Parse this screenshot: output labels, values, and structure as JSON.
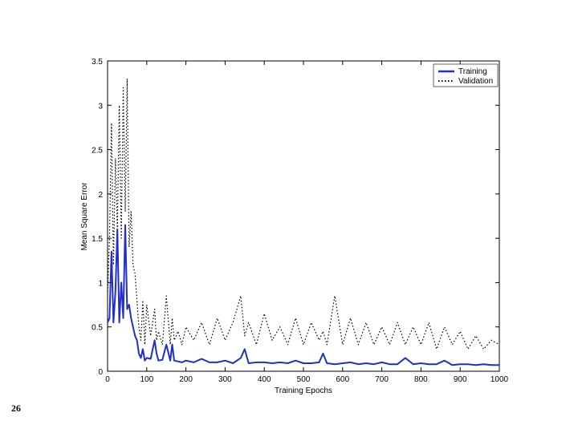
{
  "slide": {
    "number": "26"
  },
  "chart_data": {
    "type": "line",
    "title": "",
    "xlabel": "Training Epochs",
    "ylabel": "Mean Square Error",
    "xlim": [
      0,
      1000
    ],
    "ylim": [
      0,
      3.5
    ],
    "xticks": [
      "0",
      "100",
      "200",
      "300",
      "400",
      "500",
      "600",
      "700",
      "800",
      "900",
      "1000"
    ],
    "yticks": [
      "0",
      "0.5",
      "1",
      "1.5",
      "2",
      "2.5",
      "3",
      "3.5"
    ],
    "legend": {
      "placement": "top-right",
      "entries": [
        "Training",
        "Validation"
      ]
    },
    "grid": false,
    "series": [
      {
        "name": "Training",
        "color": "#1f2ed0",
        "style": "solid",
        "x": [
          0,
          5,
          10,
          15,
          20,
          25,
          30,
          35,
          40,
          45,
          50,
          55,
          60,
          65,
          70,
          75,
          80,
          85,
          90,
          95,
          100,
          110,
          120,
          125,
          130,
          140,
          150,
          160,
          165,
          170,
          180,
          190,
          200,
          220,
          240,
          260,
          280,
          300,
          320,
          340,
          350,
          360,
          380,
          400,
          420,
          440,
          460,
          480,
          500,
          520,
          540,
          550,
          560,
          580,
          600,
          620,
          640,
          660,
          680,
          700,
          720,
          740,
          760,
          780,
          800,
          820,
          840,
          860,
          880,
          900,
          920,
          940,
          960,
          980,
          1000
        ],
        "y": [
          0.55,
          0.6,
          1.35,
          0.55,
          0.9,
          1.6,
          0.55,
          1.0,
          0.6,
          1.65,
          0.7,
          0.75,
          0.6,
          0.5,
          0.4,
          0.35,
          0.2,
          0.15,
          0.25,
          0.12,
          0.15,
          0.14,
          0.35,
          0.2,
          0.12,
          0.13,
          0.3,
          0.12,
          0.3,
          0.12,
          0.11,
          0.1,
          0.12,
          0.1,
          0.14,
          0.1,
          0.1,
          0.12,
          0.09,
          0.15,
          0.25,
          0.09,
          0.1,
          0.1,
          0.09,
          0.1,
          0.09,
          0.12,
          0.09,
          0.09,
          0.1,
          0.2,
          0.09,
          0.08,
          0.09,
          0.1,
          0.08,
          0.09,
          0.08,
          0.1,
          0.08,
          0.08,
          0.15,
          0.08,
          0.09,
          0.08,
          0.08,
          0.12,
          0.07,
          0.08,
          0.08,
          0.07,
          0.08,
          0.07,
          0.07
        ]
      },
      {
        "name": "Validation",
        "color": "#000000",
        "style": "dotted",
        "x": [
          0,
          5,
          10,
          15,
          20,
          25,
          30,
          35,
          40,
          45,
          50,
          55,
          60,
          65,
          70,
          75,
          80,
          85,
          90,
          95,
          100,
          110,
          120,
          125,
          130,
          140,
          150,
          160,
          165,
          170,
          180,
          190,
          200,
          220,
          240,
          260,
          280,
          300,
          320,
          340,
          350,
          360,
          380,
          400,
          420,
          440,
          460,
          480,
          500,
          520,
          540,
          550,
          560,
          580,
          600,
          620,
          640,
          660,
          680,
          700,
          720,
          740,
          760,
          780,
          800,
          820,
          840,
          860,
          880,
          900,
          920,
          940,
          960,
          980,
          1000
        ],
        "y": [
          0.9,
          1.5,
          2.8,
          1.2,
          2.4,
          1.6,
          3.0,
          1.5,
          3.2,
          1.8,
          3.3,
          1.4,
          1.8,
          1.2,
          1.1,
          0.8,
          0.5,
          0.35,
          0.8,
          0.3,
          0.75,
          0.4,
          0.7,
          0.35,
          0.45,
          0.3,
          0.85,
          0.3,
          0.6,
          0.35,
          0.45,
          0.3,
          0.5,
          0.35,
          0.55,
          0.3,
          0.6,
          0.35,
          0.55,
          0.85,
          0.4,
          0.55,
          0.3,
          0.65,
          0.35,
          0.5,
          0.3,
          0.6,
          0.3,
          0.55,
          0.35,
          0.45,
          0.3,
          0.85,
          0.3,
          0.6,
          0.3,
          0.55,
          0.3,
          0.5,
          0.3,
          0.55,
          0.3,
          0.5,
          0.3,
          0.55,
          0.25,
          0.5,
          0.3,
          0.45,
          0.25,
          0.4,
          0.25,
          0.35,
          0.3
        ]
      }
    ]
  }
}
